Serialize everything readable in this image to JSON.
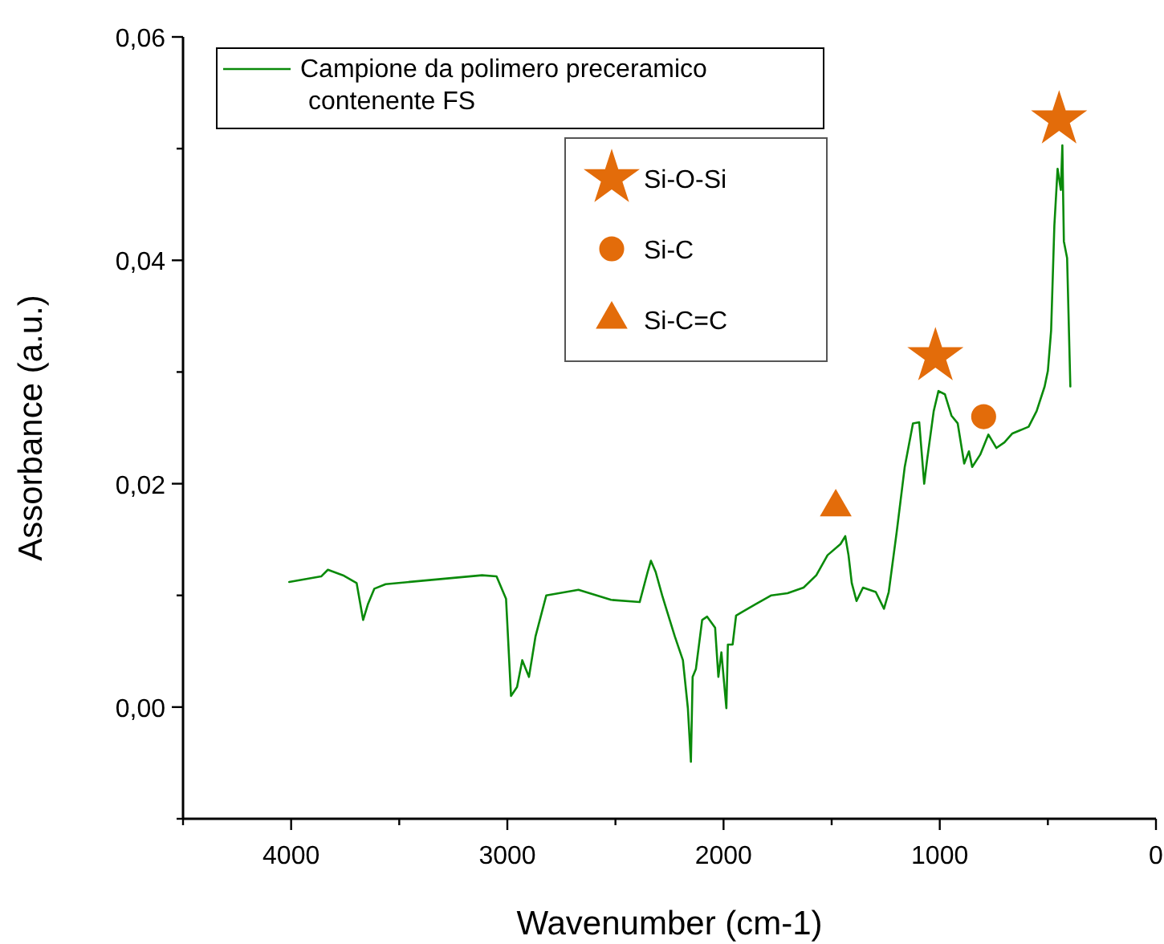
{
  "chart_data": {
    "type": "line",
    "xlabel": "Wavenumber (cm-1)",
    "ylabel": "Assorbance (a.u.)",
    "xlim": [
      4500,
      0
    ],
    "ylim": [
      -0.01,
      0.06
    ],
    "xticks": [
      {
        "value": 4500,
        "label": null
      },
      4000,
      {
        "value": 3500,
        "label": null
      },
      3000,
      {
        "value": 2500,
        "label": null
      },
      2000,
      {
        "value": 1500,
        "label": null
      },
      1000,
      {
        "value": 500,
        "label": null
      },
      0
    ],
    "yticks": [
      {
        "value": -0.01,
        "label": null
      },
      {
        "value": 0,
        "label": "0,00"
      },
      {
        "value": 0.01,
        "label": null
      },
      {
        "value": 0.02,
        "label": "0,02"
      },
      {
        "value": 0.03,
        "label": null
      },
      {
        "value": 0.04,
        "label": "0,04"
      },
      {
        "value": 0.05,
        "label": null
      },
      {
        "value": 0.06,
        "label": "0,06"
      }
    ],
    "grid": false,
    "legend": "top left",
    "marker": "none",
    "line_style": "solid",
    "series": [
      {
        "name": "Campione da polimero preceramico contenente FS",
        "color": "#0a8a0a",
        "x": [
          4009,
          3861,
          3830,
          3760,
          3697,
          3667,
          3645,
          3615,
          3563,
          3400,
          3117,
          3050,
          3006,
          2983,
          2955,
          2931,
          2900,
          2870,
          2820,
          2671,
          2520,
          2388,
          2351,
          2336,
          2314,
          2284,
          2225,
          2188,
          2165,
          2151,
          2143,
          2128,
          2099,
          2076,
          2039,
          2024,
          2010,
          1987,
          1980,
          1958,
          1942,
          1853,
          1779,
          1704,
          1630,
          1571,
          1519,
          1459,
          1437,
          1422,
          1407,
          1385,
          1355,
          1296,
          1258,
          1236,
          1199,
          1162,
          1124,
          1095,
          1072,
          1058,
          1028,
          1006,
          976,
          946,
          917,
          887,
          865,
          850,
          813,
          775,
          738,
          701,
          664,
          589,
          552,
          515,
          500,
          485,
          470,
          455,
          440,
          433,
          426,
          411,
          396
        ],
        "values": [
          0.0112,
          0.0117,
          0.0123,
          0.0118,
          0.0111,
          0.0078,
          0.0092,
          0.0106,
          0.011,
          0.0113,
          0.0118,
          0.0117,
          0.0097,
          0.001,
          0.0018,
          0.0042,
          0.0027,
          0.0063,
          0.01,
          0.0105,
          0.0096,
          0.0094,
          0.0121,
          0.0131,
          0.0121,
          0.01,
          0.0063,
          0.0042,
          -0.0001,
          -0.0049,
          0.0027,
          0.0034,
          0.0078,
          0.0081,
          0.0071,
          0.0027,
          0.0049,
          -0.0001,
          0.0056,
          0.0056,
          0.0082,
          0.0092,
          0.01,
          0.0102,
          0.0107,
          0.0118,
          0.0136,
          0.0146,
          0.0153,
          0.0136,
          0.0111,
          0.0095,
          0.0107,
          0.0103,
          0.0088,
          0.0103,
          0.0157,
          0.0215,
          0.0254,
          0.0255,
          0.02,
          0.0222,
          0.0265,
          0.0283,
          0.028,
          0.0261,
          0.0254,
          0.0218,
          0.0229,
          0.0215,
          0.0226,
          0.0244,
          0.0232,
          0.0237,
          0.0245,
          0.0251,
          0.0265,
          0.0287,
          0.0301,
          0.0337,
          0.0431,
          0.0482,
          0.0463,
          0.0503,
          0.0417,
          0.0402,
          0.0287
        ]
      },
      {
        "name": "Si-O-Si",
        "type": "scatter",
        "marker": "star",
        "color": "#e36c0a",
        "x": [
          1020,
          448
        ],
        "values": [
          0.0314,
          0.0526
        ]
      },
      {
        "name": "Si-C",
        "type": "scatter",
        "marker": "circle",
        "color": "#e36c0a",
        "x": [
          797
        ],
        "values": [
          0.026
        ]
      },
      {
        "name": "Si-C=C",
        "type": "scatter",
        "marker": "triangle",
        "color": "#e36c0a",
        "x": [
          1481
        ],
        "values": [
          0.0179
        ]
      }
    ]
  }
}
